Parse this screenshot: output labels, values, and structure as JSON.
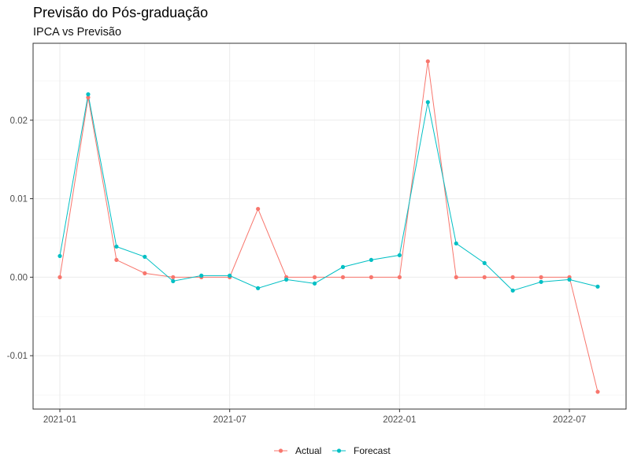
{
  "chart_data": {
    "type": "line",
    "title": "Previsão do Pós-graduação",
    "subtitle": "IPCA vs Previsão",
    "xlabel": "",
    "ylabel": "",
    "x_ticks": [
      "2021-01",
      "2021-07",
      "2022-01",
      "2022-07"
    ],
    "y_ticks": [
      "-0.01",
      "0.00",
      "0.01",
      "0.02"
    ],
    "ylim": [
      -0.0168,
      0.0298
    ],
    "x": [
      "2021-01",
      "2021-02",
      "2021-03",
      "2021-04",
      "2021-05",
      "2021-06",
      "2021-07",
      "2021-08",
      "2021-09",
      "2021-10",
      "2021-11",
      "2021-12",
      "2022-01",
      "2022-02",
      "2022-03",
      "2022-04",
      "2022-05",
      "2022-06",
      "2022-07",
      "2022-08"
    ],
    "series": [
      {
        "name": "Actual",
        "color": "#F8766D",
        "values": [
          0.0,
          0.0229,
          0.0022,
          0.0005,
          0.0,
          0.0,
          0.0,
          0.0087,
          0.0,
          0.0,
          0.0,
          0.0,
          0.0,
          0.0275,
          0.0,
          0.0,
          0.0,
          0.0,
          0.0,
          -0.0146
        ]
      },
      {
        "name": "Forecast",
        "color": "#00BFC4",
        "values": [
          0.0027,
          0.0233,
          0.0039,
          0.0026,
          -0.0005,
          0.0002,
          0.0002,
          -0.0014,
          -0.0003,
          -0.0008,
          0.0013,
          0.0022,
          0.0028,
          0.0223,
          0.0043,
          0.0018,
          -0.0017,
          -0.0006,
          -0.0003,
          -0.0012
        ]
      }
    ],
    "legend_position": "bottom",
    "grid": true
  }
}
